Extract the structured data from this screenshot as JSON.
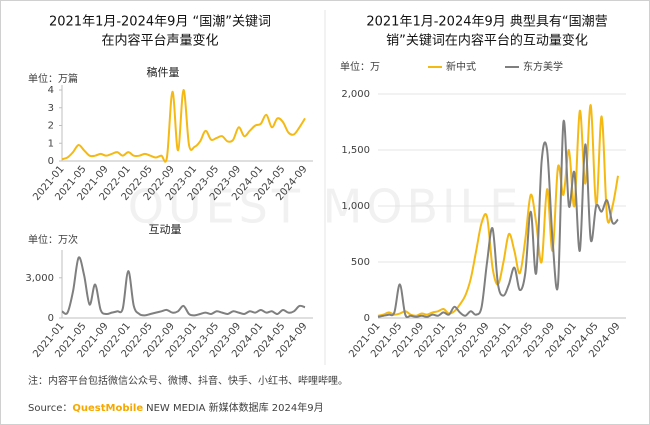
{
  "left_title": [
    "2021年1月-2024年9月 “国潮”关键词",
    "在内容平台声量变化"
  ],
  "note": "注：内容平台包括微信公众号、微博、抖音、快手、小红书、哔哩哔哩。",
  "source": {
    "label": "Source：",
    "brand": "QuestMobile",
    "text": "NEW MEDIA 新媒体数据库 2024年9月"
  },
  "watermark": "QUEST MOBILE",
  "chart_data": [
    {
      "type": "line",
      "title": "稿件量",
      "unit": "单位：万篇",
      "color": "#f5b914",
      "grid": false,
      "categories": [
        "2021-01",
        null,
        null,
        null,
        "2021-05",
        null,
        null,
        null,
        "2021-09",
        null,
        null,
        null,
        "2022-01",
        null,
        null,
        null,
        "2022-05",
        null,
        null,
        null,
        "2022-09",
        null,
        null,
        null,
        "2023-01",
        null,
        null,
        null,
        "2023-05",
        null,
        null,
        null,
        "2023-09",
        null,
        null,
        null,
        "2024-01",
        null,
        null,
        null,
        "2024-05",
        null,
        null,
        null,
        "2024-09"
      ],
      "values": [
        0.1,
        0.2,
        0.5,
        0.9,
        0.6,
        0.3,
        0.3,
        0.4,
        0.3,
        0.4,
        0.5,
        0.3,
        0.5,
        0.3,
        0.3,
        0.4,
        0.3,
        0.2,
        0.3,
        0.2,
        3.9,
        0.6,
        4.0,
        0.9,
        0.8,
        1.1,
        1.7,
        1.2,
        1.3,
        1.4,
        1.1,
        1.2,
        1.9,
        1.4,
        1.7,
        2.0,
        2.1,
        2.6,
        1.9,
        2.4,
        2.2,
        1.6,
        1.5,
        1.9,
        2.4
      ],
      "ylim": [
        0,
        4
      ],
      "yticks": [
        0,
        1,
        2,
        3,
        4
      ]
    },
    {
      "type": "line",
      "title": "互动量",
      "unit": "单位：万次",
      "color": "#7f7f7f",
      "grid": false,
      "categories": [
        "2021-01",
        null,
        null,
        null,
        "2021-05",
        null,
        null,
        null,
        "2021-09",
        null,
        null,
        null,
        "2022-01",
        null,
        null,
        null,
        "2022-05",
        null,
        null,
        null,
        "2022-09",
        null,
        null,
        null,
        "2023-01",
        null,
        null,
        null,
        "2023-05",
        null,
        null,
        null,
        "2023-09",
        null,
        null,
        null,
        "2024-01",
        null,
        null,
        null,
        "2024-05",
        null,
        null,
        null,
        "2024-09"
      ],
      "values": [
        500,
        400,
        2000,
        4500,
        3200,
        1000,
        2500,
        600,
        300,
        400,
        500,
        700,
        3500,
        900,
        300,
        200,
        300,
        400,
        500,
        600,
        400,
        500,
        900,
        300,
        200,
        300,
        400,
        300,
        500,
        400,
        300,
        500,
        400,
        300,
        500,
        400,
        600,
        400,
        500,
        300,
        600,
        400,
        500,
        900,
        800
      ],
      "ylim": [
        0,
        4700
      ],
      "yticks": [
        0,
        {
          "value": 3000,
          "label": "3,000"
        }
      ]
    },
    {
      "type": "line",
      "title": [
        "2021年1月-2024年9月 典型具有“国潮营",
        "销”关键词在内容平台的互动量变化"
      ],
      "unit": "单位：万",
      "grid": true,
      "categories": [
        "2021-01",
        null,
        null,
        null,
        "2021-05",
        null,
        null,
        null,
        "2021-09",
        null,
        null,
        null,
        "2022-01",
        null,
        null,
        null,
        "2022-05",
        null,
        null,
        null,
        "2022-09",
        null,
        null,
        null,
        "2023-01",
        null,
        null,
        null,
        "2023-05",
        null,
        null,
        null,
        "2023-09",
        null,
        null,
        null,
        "2024-01",
        null,
        null,
        null,
        "2024-05",
        null,
        null,
        null,
        "2024-09"
      ],
      "series": [
        {
          "name": "新中式",
          "color": "#f5b914",
          "values": [
            20,
            30,
            50,
            30,
            40,
            60,
            30,
            20,
            40,
            30,
            50,
            60,
            80,
            40,
            60,
            120,
            200,
            350,
            600,
            850,
            900,
            450,
            300,
            500,
            750,
            600,
            400,
            700,
            1100,
            850,
            500,
            1150,
            600,
            1350,
            1100,
            1500,
            1000,
            1850,
            1200,
            1900,
            1000,
            1800,
            900,
            1000,
            1270
          ]
        },
        {
          "name": "东方美学",
          "color": "#7f7f7f",
          "values": [
            10,
            20,
            30,
            50,
            300,
            30,
            20,
            10,
            20,
            10,
            30,
            20,
            50,
            30,
            100,
            50,
            20,
            60,
            30,
            100,
            500,
            800,
            300,
            200,
            300,
            450,
            250,
            400,
            950,
            400,
            1400,
            1500,
            700,
            300,
            1750,
            1000,
            1300,
            600,
            1550,
            700,
            1000,
            950,
            1050,
            850,
            880
          ]
        }
      ],
      "ylim": [
        0,
        2000
      ],
      "yticks": [
        0,
        500,
        {
          "value": 1000,
          "label": "1,000"
        },
        {
          "value": 1500,
          "label": "1,500"
        },
        {
          "value": 2000,
          "label": "2,000"
        }
      ]
    }
  ]
}
